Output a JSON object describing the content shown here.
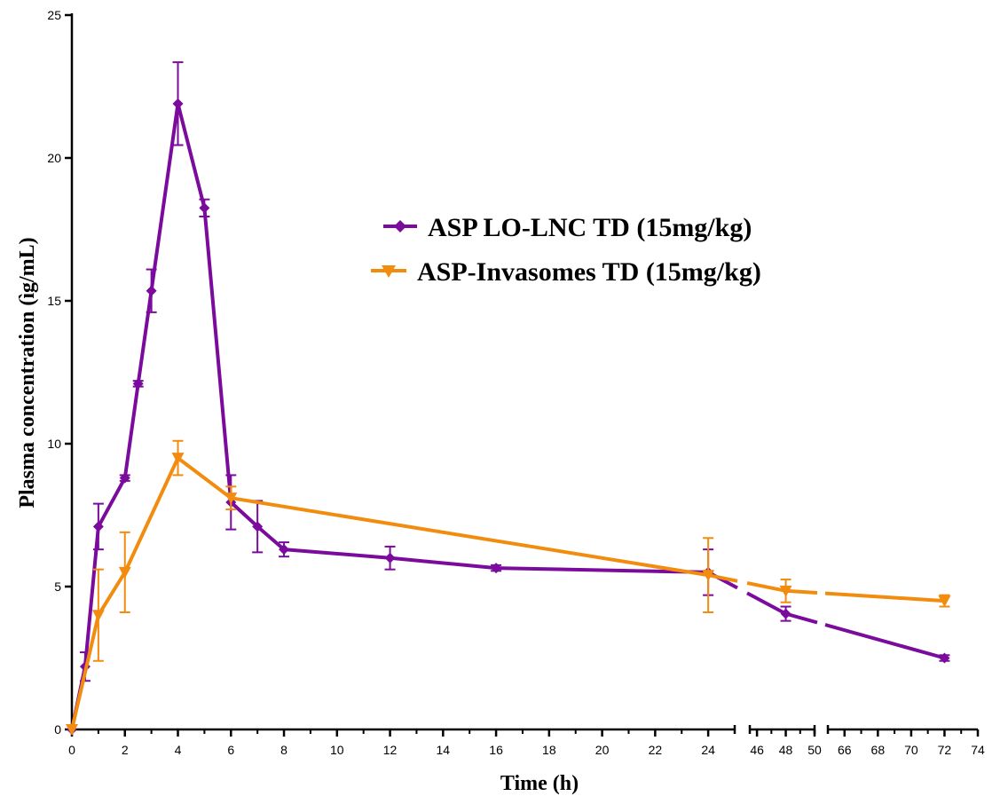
{
  "chart_data": {
    "type": "line",
    "title": "",
    "xlabel": "Time (h)",
    "ylabel": "Plasma concentration (ìg/mL)",
    "ylim": [
      0,
      25
    ],
    "yticks": [
      "0",
      "5",
      "10",
      "15",
      "20",
      "25"
    ],
    "x_segments": [
      {
        "range": [
          0,
          25
        ],
        "ticks": [
          "0",
          "2",
          "4",
          "6",
          "8",
          "10",
          "12",
          "14",
          "16",
          "18",
          "20",
          "22",
          "24"
        ]
      },
      {
        "range": [
          45.5,
          50
        ],
        "ticks": [
          "46",
          "48",
          "50"
        ]
      },
      {
        "range": [
          65,
          74
        ],
        "ticks": [
          "66",
          "68",
          "70",
          "72",
          "74"
        ]
      }
    ],
    "series": [
      {
        "name": "ASP LO-LNC TD (15mg/kg)",
        "color": "#7B0B9C",
        "marker": "diamond",
        "x": [
          0,
          0.5,
          1,
          2,
          2.5,
          3,
          4,
          5,
          6,
          7,
          8,
          12,
          16,
          24,
          48,
          72
        ],
        "y": [
          0,
          2.2,
          7.1,
          8.8,
          12.1,
          15.35,
          21.9,
          18.25,
          7.95,
          7.1,
          6.3,
          6.0,
          5.65,
          5.5,
          4.05,
          2.5
        ],
        "err": [
          0,
          0.5,
          0.8,
          0.1,
          0.1,
          0.75,
          1.45,
          0.3,
          0.95,
          0.9,
          0.25,
          0.4,
          0.1,
          0.8,
          0.25,
          0.1
        ]
      },
      {
        "name": "ASP-Invasomes TD (15mg/kg)",
        "color": "#F28C0F",
        "marker": "triangle-down",
        "x": [
          0,
          1,
          2,
          4,
          6,
          24,
          48,
          72
        ],
        "y": [
          0,
          4.0,
          5.5,
          9.5,
          8.1,
          5.4,
          4.85,
          4.5
        ],
        "err": [
          0,
          1.6,
          1.4,
          0.6,
          0.4,
          1.3,
          0.4,
          0.2
        ]
      }
    ],
    "legend_position": "center-right"
  }
}
